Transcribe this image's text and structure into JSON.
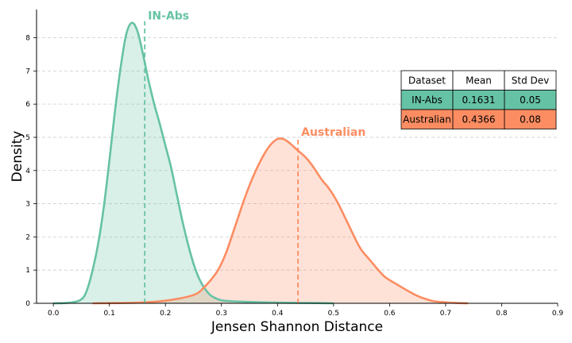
{
  "chart_data": {
    "type": "area",
    "xlabel": "Jensen Shannon Distance",
    "ylabel": "Density",
    "xlim": [
      -0.03,
      0.9
    ],
    "ylim": [
      0,
      8.85
    ],
    "xticks": [
      "0.0",
      "0.1",
      "0.2",
      "0.3",
      "0.4",
      "0.5",
      "0.6",
      "0.7",
      "0.8",
      "0.9"
    ],
    "yticks": [
      "0",
      "1",
      "2",
      "3",
      "4",
      "5",
      "6",
      "7",
      "8"
    ],
    "grid": "horizontal-dashed",
    "series": [
      {
        "name": "IN-Abs",
        "color": "#66c2a5",
        "mean": 0.1631,
        "x": [
          0.0,
          0.03,
          0.05,
          0.06,
          0.07,
          0.08,
          0.09,
          0.1,
          0.11,
          0.12,
          0.13,
          0.14,
          0.15,
          0.16,
          0.17,
          0.18,
          0.19,
          0.2,
          0.21,
          0.22,
          0.23,
          0.24,
          0.25,
          0.26,
          0.27,
          0.28,
          0.29,
          0.3,
          0.32,
          0.35,
          0.4,
          0.45,
          0.5
        ],
        "y": [
          0.0,
          0.02,
          0.12,
          0.4,
          1.0,
          1.8,
          2.9,
          4.3,
          5.8,
          7.1,
          8.1,
          8.45,
          8.2,
          7.5,
          6.7,
          6.0,
          5.4,
          4.75,
          4.1,
          3.3,
          2.5,
          1.8,
          1.2,
          0.75,
          0.45,
          0.25,
          0.15,
          0.09,
          0.06,
          0.04,
          0.02,
          0.01,
          0.0
        ]
      },
      {
        "name": "Australian",
        "color": "#fc8d62",
        "mean": 0.4366,
        "x": [
          0.07,
          0.15,
          0.2,
          0.25,
          0.27,
          0.29,
          0.3,
          0.31,
          0.32,
          0.33,
          0.34,
          0.35,
          0.36,
          0.37,
          0.38,
          0.39,
          0.4,
          0.41,
          0.42,
          0.43,
          0.44,
          0.45,
          0.46,
          0.47,
          0.48,
          0.49,
          0.5,
          0.51,
          0.52,
          0.53,
          0.54,
          0.55,
          0.56,
          0.57,
          0.58,
          0.59,
          0.6,
          0.61,
          0.62,
          0.63,
          0.65,
          0.67,
          0.68,
          0.7,
          0.72,
          0.74
        ],
        "y": [
          0.0,
          0.02,
          0.08,
          0.25,
          0.5,
          0.9,
          1.2,
          1.6,
          2.1,
          2.6,
          3.1,
          3.55,
          3.95,
          4.3,
          4.6,
          4.82,
          4.95,
          4.95,
          4.85,
          4.7,
          4.55,
          4.4,
          4.2,
          3.95,
          3.7,
          3.5,
          3.25,
          2.95,
          2.6,
          2.25,
          1.9,
          1.6,
          1.4,
          1.2,
          1.0,
          0.82,
          0.7,
          0.6,
          0.5,
          0.4,
          0.22,
          0.1,
          0.06,
          0.03,
          0.01,
          0.0
        ]
      }
    ],
    "table": {
      "headers": [
        "Dataset",
        "Mean",
        "Std Dev"
      ],
      "rows": [
        {
          "cells": [
            "IN-Abs",
            "0.1631",
            "0.05"
          ],
          "color": "#66c2a5"
        },
        {
          "cells": [
            "Australian",
            "0.4366",
            "0.08"
          ],
          "color": "#fc8d62"
        }
      ]
    }
  }
}
